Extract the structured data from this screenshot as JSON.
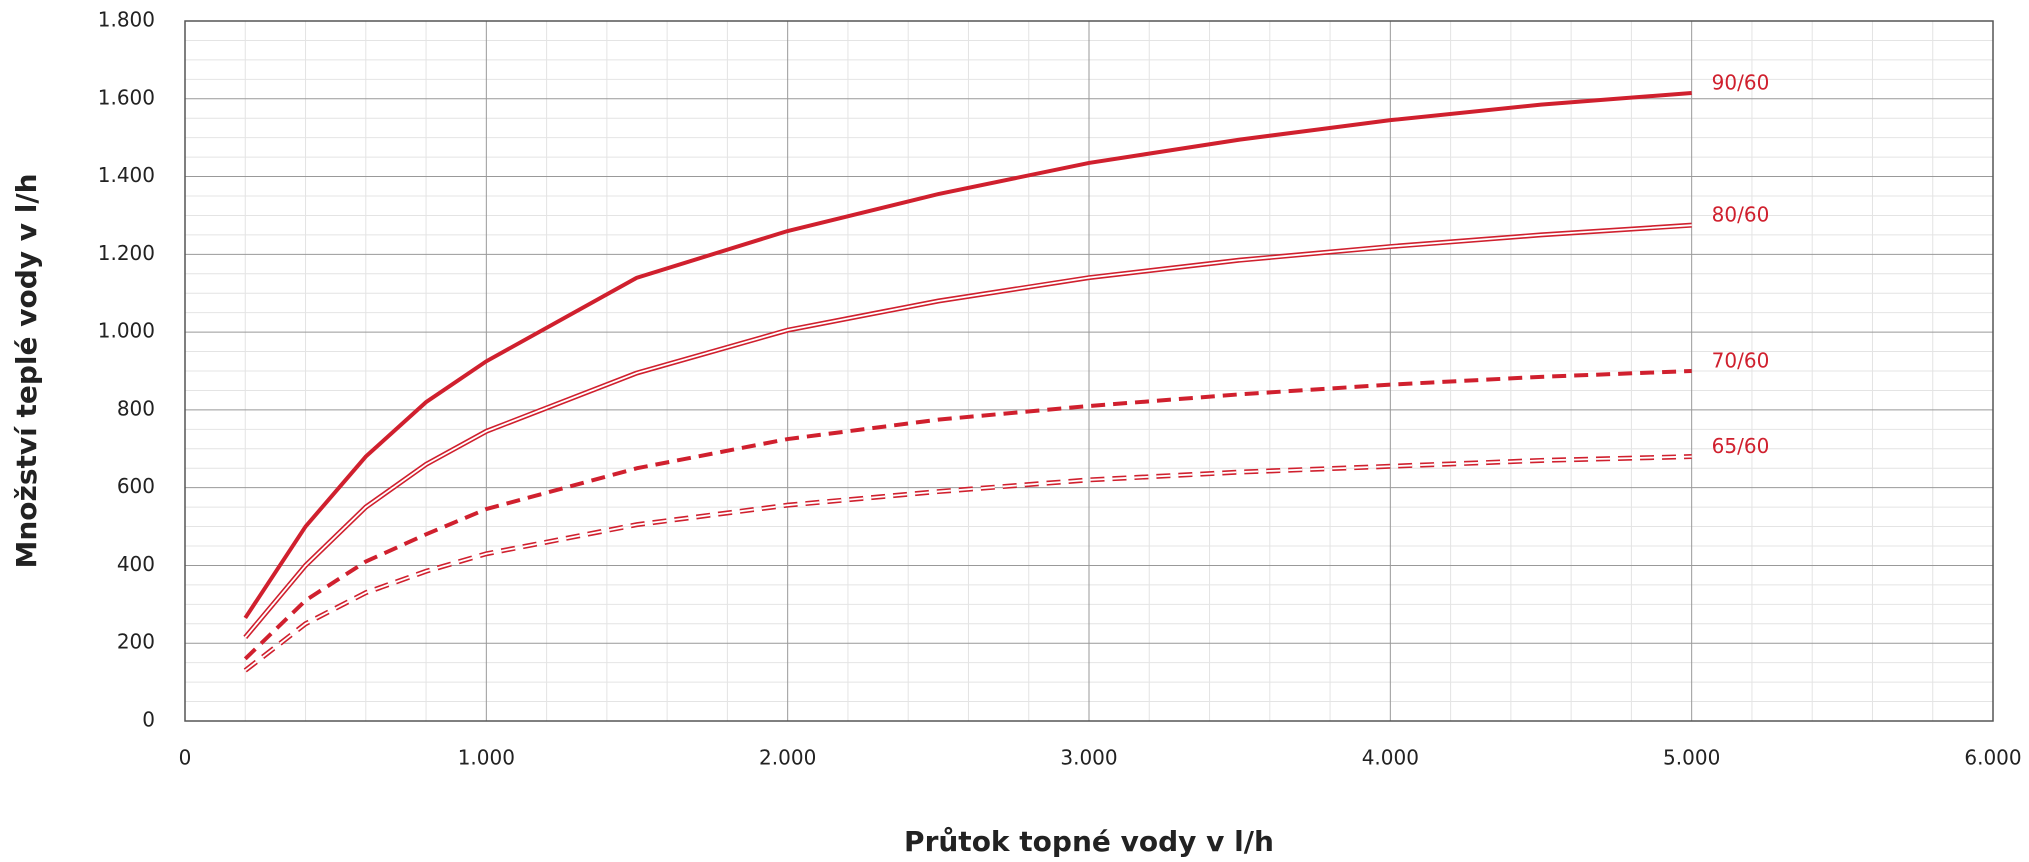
{
  "chart_data": {
    "type": "line",
    "xlabel": "Průtok topné vody v l/h",
    "ylabel": "Množství teplé vody v l/h",
    "x": [
      200,
      400,
      600,
      800,
      1000,
      1500,
      2000,
      2500,
      3000,
      3500,
      4000,
      4500,
      5000
    ],
    "series": [
      {
        "name": "90/60",
        "color": "#d0202e",
        "dash": false,
        "double": false,
        "values": [
          265,
          500,
          680,
          820,
          925,
          1140,
          1260,
          1355,
          1435,
          1495,
          1545,
          1585,
          1615
        ]
      },
      {
        "name": "80/60",
        "color": "#d0202e",
        "dash": false,
        "double": true,
        "values": [
          215,
          400,
          550,
          660,
          745,
          895,
          1005,
          1080,
          1140,
          1185,
          1220,
          1250,
          1275
        ]
      },
      {
        "name": "70/60",
        "color": "#d0202e",
        "dash": true,
        "double": false,
        "values": [
          160,
          310,
          410,
          480,
          545,
          650,
          725,
          775,
          810,
          840,
          865,
          885,
          900
        ]
      },
      {
        "name": "65/60",
        "color": "#d0202e",
        "dash": true,
        "double": true,
        "values": [
          130,
          250,
          330,
          385,
          430,
          505,
          555,
          590,
          620,
          640,
          655,
          670,
          680
        ]
      }
    ],
    "xlim": [
      0,
      6000
    ],
    "xticks": [
      0,
      {
        "value": 1000,
        "label": "1.000"
      },
      {
        "value": 2000,
        "label": "2.000"
      },
      {
        "value": 3000,
        "label": "3.000"
      },
      {
        "value": 4000,
        "label": "4.000"
      },
      {
        "value": 5000,
        "label": "5.000"
      },
      {
        "value": 6000,
        "label": "6.000"
      }
    ],
    "ylim": [
      0,
      1800
    ],
    "yticks": [
      0,
      200,
      400,
      600,
      800,
      {
        "value": 1000,
        "label": "1.000"
      },
      {
        "value": 1200,
        "label": "1.200"
      },
      {
        "value": 1400,
        "label": "1.400"
      },
      {
        "value": 1600,
        "label": "1.600"
      },
      {
        "value": 1800,
        "label": "1.800"
      }
    ],
    "grid": true
  }
}
